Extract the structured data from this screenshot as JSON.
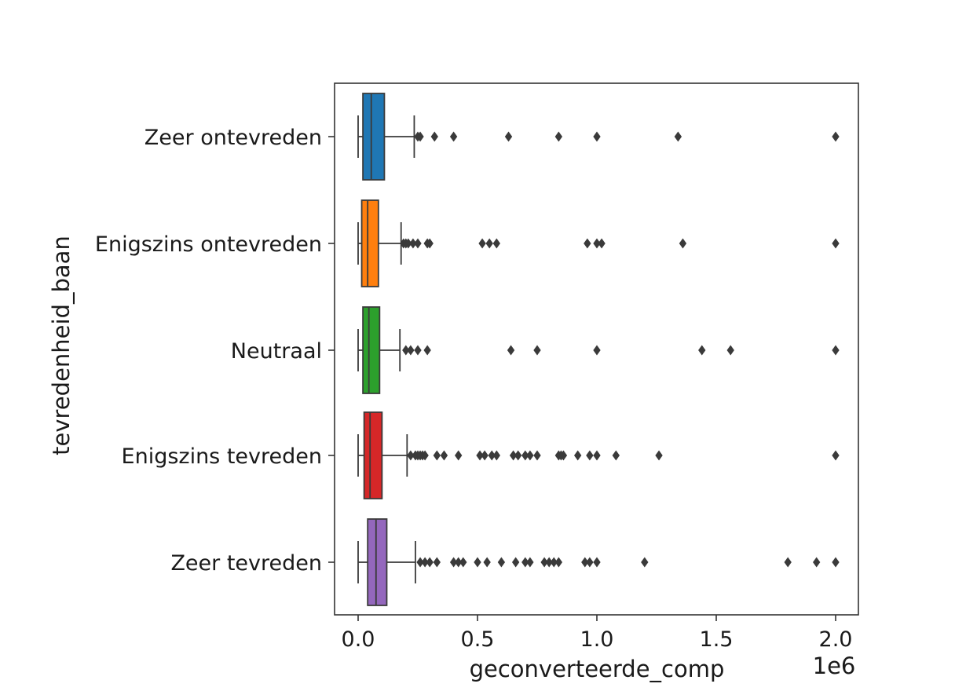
{
  "chart_data": {
    "type": "boxplot",
    "orientation": "horizontal",
    "xlabel": "geconverteerde_comp",
    "ylabel": "tevredenheid_baan",
    "x_offset_text": "1e6",
    "xlim": [
      -0.1,
      2.1
    ],
    "x_ticks": [
      0.0,
      0.5,
      1.0,
      1.5,
      2.0
    ],
    "x_tick_labels": [
      "0.0",
      "0.5",
      "1.0",
      "1.5",
      "2.0"
    ],
    "x_scale_note": "values in units of 1e6",
    "grid": false,
    "categories": [
      "Zeer ontevreden",
      "Enigszins ontevreden",
      "Neutraal",
      "Enigszins tevreden",
      "Zeer tevreden"
    ],
    "series": [
      {
        "name": "Zeer ontevreden",
        "color": "#1f77b4",
        "whisker_low": 0.0,
        "q1": 0.02,
        "median": 0.055,
        "q3": 0.11,
        "whisker_high": 0.235,
        "outliers": [
          0.25,
          0.26,
          0.32,
          0.4,
          0.63,
          0.84,
          1.0,
          1.34,
          2.0
        ]
      },
      {
        "name": "Enigszins ontevreden",
        "color": "#ff7f0e",
        "whisker_low": 0.0,
        "q1": 0.015,
        "median": 0.04,
        "q3": 0.085,
        "whisker_high": 0.18,
        "outliers": [
          0.19,
          0.2,
          0.21,
          0.23,
          0.25,
          0.29,
          0.3,
          0.52,
          0.55,
          0.58,
          0.96,
          1.0,
          1.02,
          1.36,
          2.0
        ]
      },
      {
        "name": "Neutraal",
        "color": "#2ca02c",
        "whisker_low": 0.0,
        "q1": 0.02,
        "median": 0.045,
        "q3": 0.09,
        "whisker_high": 0.175,
        "outliers": [
          0.2,
          0.22,
          0.25,
          0.29,
          0.64,
          0.75,
          1.0,
          1.44,
          1.56,
          2.0
        ]
      },
      {
        "name": "Enigszins tevreden",
        "color": "#d62728",
        "whisker_low": 0.0,
        "q1": 0.025,
        "median": 0.05,
        "q3": 0.1,
        "whisker_high": 0.205,
        "outliers": [
          0.22,
          0.24,
          0.25,
          0.26,
          0.27,
          0.28,
          0.33,
          0.36,
          0.42,
          0.51,
          0.53,
          0.56,
          0.58,
          0.65,
          0.67,
          0.7,
          0.72,
          0.75,
          0.84,
          0.85,
          0.86,
          0.92,
          0.97,
          1.0,
          1.08,
          1.26,
          2.0
        ]
      },
      {
        "name": "Zeer tevreden",
        "color": "#9467bd",
        "whisker_low": 0.0,
        "q1": 0.04,
        "median": 0.075,
        "q3": 0.12,
        "whisker_high": 0.24,
        "outliers": [
          0.26,
          0.28,
          0.3,
          0.33,
          0.4,
          0.42,
          0.44,
          0.5,
          0.54,
          0.6,
          0.66,
          0.7,
          0.72,
          0.78,
          0.8,
          0.82,
          0.84,
          0.95,
          0.97,
          1.0,
          1.2,
          1.8,
          1.92,
          2.0
        ]
      }
    ]
  }
}
